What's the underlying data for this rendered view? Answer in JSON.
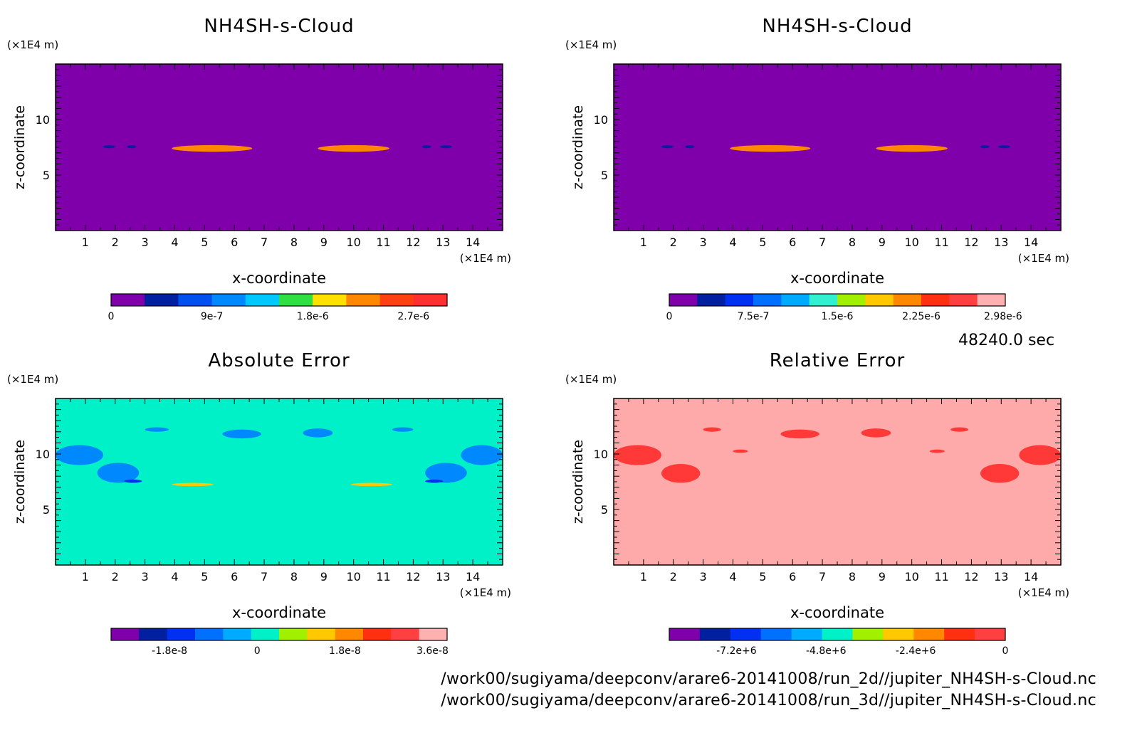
{
  "timestamp": "48240.0 sec",
  "footer": {
    "path1": "/work00/sugiyama/deepconv/arare6-20141008/run_2d//jupiter_NH4SH-s-Cloud.nc",
    "path2": "/work00/sugiyama/deepconv/arare6-20141008/run_3d//jupiter_NH4SH-s-Cloud.nc"
  },
  "chart_data": [
    {
      "type": "heatmap",
      "title": "NH4SH-s-Cloud",
      "xlabel": "x-coordinate",
      "ylabel": "z-coordinate",
      "x_unit": "(×1E4 m)",
      "y_unit": "(×1E4 m)",
      "xlim": [
        0,
        15
      ],
      "ylim": [
        0,
        15
      ],
      "x_ticks": [
        1,
        2,
        3,
        4,
        5,
        6,
        7,
        8,
        9,
        10,
        11,
        12,
        13,
        14
      ],
      "y_ticks": [
        5,
        10
      ],
      "background": "#7f00aa",
      "colorbar": {
        "colors": [
          "#7f00aa",
          "#0020a0",
          "#0050f0",
          "#0088ff",
          "#00c8ff",
          "#30e040",
          "#ffe000",
          "#ff8800",
          "#ff4010",
          "#ff3030"
        ],
        "tick_labels": [
          "0",
          "9e-7",
          "1.8e-6",
          "2.7e-6"
        ],
        "tick_values": [
          0,
          9e-07,
          1.8e-06,
          2.7e-06
        ],
        "range": [
          0,
          3e-06
        ]
      },
      "features": [
        {
          "x": [
            1.6,
            2.0
          ],
          "z": [
            7.6,
            7.5
          ],
          "color": "#0020a0"
        },
        {
          "x": [
            2.4,
            2.7
          ],
          "z": [
            7.6,
            7.5
          ],
          "color": "#0020a0"
        },
        {
          "x": [
            3.9,
            6.6
          ],
          "z": [
            7.1,
            7.7
          ],
          "color": "#ff8800"
        },
        {
          "x": [
            8.8,
            11.2
          ],
          "z": [
            7.1,
            7.7
          ],
          "color": "#ff8800"
        },
        {
          "x": [
            12.3,
            12.6
          ],
          "z": [
            7.6,
            7.5
          ],
          "color": "#0020a0"
        },
        {
          "x": [
            12.9,
            13.3
          ],
          "z": [
            7.6,
            7.5
          ],
          "color": "#0020a0"
        }
      ]
    },
    {
      "type": "heatmap",
      "title": "NH4SH-s-Cloud",
      "xlabel": "x-coordinate",
      "ylabel": "z-coordinate",
      "x_unit": "(×1E4 m)",
      "y_unit": "(×1E4 m)",
      "xlim": [
        0,
        15
      ],
      "ylim": [
        0,
        15
      ],
      "x_ticks": [
        1,
        2,
        3,
        4,
        5,
        6,
        7,
        8,
        9,
        10,
        11,
        12,
        13,
        14
      ],
      "y_ticks": [
        5,
        10
      ],
      "background": "#7f00aa",
      "colorbar": {
        "colors": [
          "#7f00aa",
          "#0020a0",
          "#0030f0",
          "#0070ff",
          "#00aaff",
          "#30f0d0",
          "#a0f000",
          "#ffc800",
          "#ff8800",
          "#ff3010",
          "#ff4040",
          "#ffb0b0"
        ],
        "tick_labels": [
          "0",
          "7.5e-7",
          "1.5e-6",
          "2.25e-6",
          "2.98e-6"
        ],
        "tick_values": [
          0,
          7.5e-07,
          1.5e-06,
          2.25e-06,
          2.98e-06
        ],
        "range": [
          0,
          3e-06
        ]
      },
      "features": [
        {
          "x": [
            1.6,
            2.0
          ],
          "z": [
            7.6,
            7.5
          ],
          "color": "#0020a0"
        },
        {
          "x": [
            2.4,
            2.7
          ],
          "z": [
            7.6,
            7.5
          ],
          "color": "#0020a0"
        },
        {
          "x": [
            3.9,
            6.6
          ],
          "z": [
            7.1,
            7.7
          ],
          "color": "#ff8800"
        },
        {
          "x": [
            8.8,
            11.2
          ],
          "z": [
            7.1,
            7.7
          ],
          "color": "#ff8800"
        },
        {
          "x": [
            12.3,
            12.6
          ],
          "z": [
            7.6,
            7.5
          ],
          "color": "#0020a0"
        },
        {
          "x": [
            12.9,
            13.3
          ],
          "z": [
            7.6,
            7.5
          ],
          "color": "#0020a0"
        }
      ]
    },
    {
      "type": "heatmap",
      "title": "Absolute Error",
      "xlabel": "x-coordinate",
      "ylabel": "z-coordinate",
      "x_unit": "(×1E4 m)",
      "y_unit": "(×1E4 m)",
      "xlim": [
        0,
        15
      ],
      "ylim": [
        0,
        15
      ],
      "x_ticks": [
        1,
        2,
        3,
        4,
        5,
        6,
        7,
        8,
        9,
        10,
        11,
        12,
        13,
        14
      ],
      "y_ticks": [
        5,
        10
      ],
      "background": "#00f0c8",
      "colorbar": {
        "colors": [
          "#7f00aa",
          "#0020a0",
          "#0030f0",
          "#0070ff",
          "#00aaff",
          "#00f0c8",
          "#a0f000",
          "#ffc800",
          "#ff8800",
          "#ff3010",
          "#ff4040",
          "#ffb0b0"
        ],
        "tick_labels": [
          "-1.8e-8",
          "0",
          "1.8e-8",
          "3.6e-8"
        ],
        "tick_values": [
          -1.8e-08,
          0,
          1.8e-08,
          3.6e-08
        ],
        "range": [
          -3e-08,
          3.9e-08
        ]
      },
      "features": [
        {
          "x": [
            0,
            1.6
          ],
          "z": [
            9.0,
            10.8
          ],
          "color": "#0088ff"
        },
        {
          "x": [
            1.4,
            2.8
          ],
          "z": [
            7.4,
            9.2
          ],
          "color": "#0088ff"
        },
        {
          "x": [
            2.3,
            2.9
          ],
          "z": [
            7.4,
            7.7
          ],
          "color": "#0030f0"
        },
        {
          "x": [
            3.0,
            3.8
          ],
          "z": [
            12.0,
            12.4
          ],
          "color": "#0088ff"
        },
        {
          "x": [
            5.6,
            6.9
          ],
          "z": [
            11.4,
            12.2
          ],
          "color": "#0088ff"
        },
        {
          "x": [
            8.3,
            9.3
          ],
          "z": [
            11.5,
            12.3
          ],
          "color": "#0088ff"
        },
        {
          "x": [
            11.3,
            12.0
          ],
          "z": [
            12.0,
            12.4
          ],
          "color": "#0088ff"
        },
        {
          "x": [
            12.4,
            13.8
          ],
          "z": [
            7.4,
            9.2
          ],
          "color": "#0088ff"
        },
        {
          "x": [
            12.4,
            13.0
          ],
          "z": [
            7.4,
            7.7
          ],
          "color": "#0030f0"
        },
        {
          "x": [
            13.6,
            15.0
          ],
          "z": [
            9.0,
            10.8
          ],
          "color": "#0088ff"
        },
        {
          "x": [
            3.9,
            5.3
          ],
          "z": [
            7.1,
            7.4
          ],
          "color": "#ffc800"
        },
        {
          "x": [
            9.9,
            11.3
          ],
          "z": [
            7.1,
            7.4
          ],
          "color": "#ffc800"
        }
      ]
    },
    {
      "type": "heatmap",
      "title": "Relative Error",
      "xlabel": "x-coordinate",
      "ylabel": "z-coordinate",
      "x_unit": "(×1E4 m)",
      "y_unit": "(×1E4 m)",
      "xlim": [
        0,
        15
      ],
      "ylim": [
        0,
        15
      ],
      "x_ticks": [
        1,
        2,
        3,
        4,
        5,
        6,
        7,
        8,
        9,
        10,
        11,
        12,
        13,
        14
      ],
      "y_ticks": [
        5,
        10
      ],
      "background": "#ffaaaa",
      "colorbar": {
        "colors": [
          "#7f00aa",
          "#0020a0",
          "#0030f0",
          "#0070ff",
          "#00aaff",
          "#00f0c8",
          "#a0f000",
          "#ffc800",
          "#ff8800",
          "#ff3010",
          "#ff4040"
        ],
        "tick_labels": [
          "-7.2e+6",
          "-4.8e+6",
          "-2.4e+6",
          "0"
        ],
        "tick_values": [
          -7200000.0,
          -4800000.0,
          -2400000.0,
          0
        ],
        "range": [
          -9000000.0,
          0
        ]
      },
      "features": [
        {
          "x": [
            0,
            1.6
          ],
          "z": [
            9.0,
            10.8
          ],
          "color": "#ff3838"
        },
        {
          "x": [
            1.6,
            2.9
          ],
          "z": [
            7.4,
            9.1
          ],
          "color": "#ff3838"
        },
        {
          "x": [
            3.0,
            3.6
          ],
          "z": [
            12.0,
            12.4
          ],
          "color": "#ff3838"
        },
        {
          "x": [
            5.6,
            6.9
          ],
          "z": [
            11.4,
            12.2
          ],
          "color": "#ff3838"
        },
        {
          "x": [
            8.3,
            9.3
          ],
          "z": [
            11.5,
            12.3
          ],
          "color": "#ff3838"
        },
        {
          "x": [
            11.3,
            11.9
          ],
          "z": [
            12.0,
            12.4
          ],
          "color": "#ff3838"
        },
        {
          "x": [
            12.3,
            13.6
          ],
          "z": [
            7.4,
            9.1
          ],
          "color": "#ff3838"
        },
        {
          "x": [
            13.6,
            15.0
          ],
          "z": [
            9.0,
            10.8
          ],
          "color": "#ff3838"
        },
        {
          "x": [
            4.0,
            4.5
          ],
          "z": [
            10.1,
            10.4
          ],
          "color": "#ff3838"
        },
        {
          "x": [
            10.6,
            11.1
          ],
          "z": [
            10.1,
            10.4
          ],
          "color": "#ff3838"
        }
      ]
    }
  ]
}
